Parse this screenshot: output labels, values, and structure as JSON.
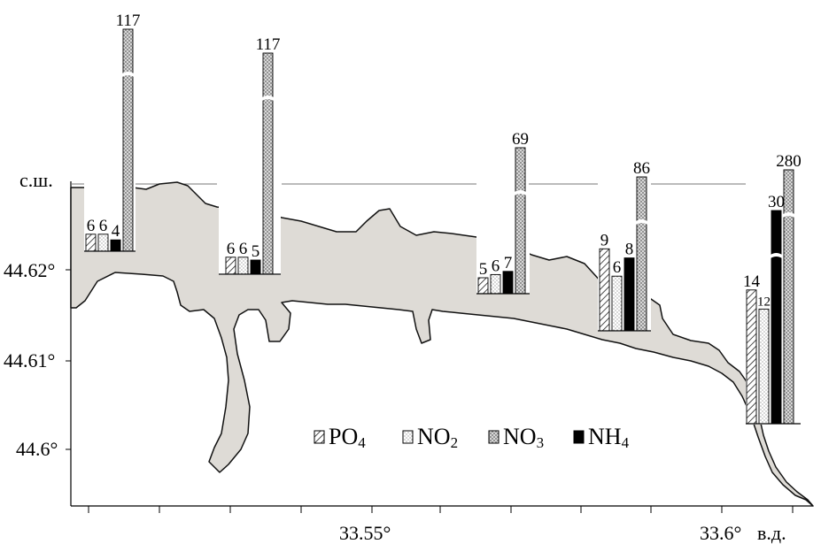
{
  "chart_data": {
    "type": "bar",
    "title": "",
    "subtitle": "",
    "xlabel": "в.д.",
    "ylabel": "с.ш.",
    "x_axis": {
      "ticks": [
        33.55,
        33.6
      ],
      "tick_labels": [
        "33.55°",
        "33.6°"
      ],
      "unit_label": "в.д."
    },
    "y_axis": {
      "ticks": [
        44.62,
        44.61,
        44.6
      ],
      "tick_labels": [
        "44.62°",
        "44.61°",
        "44.6°"
      ],
      "unit_label": "с.ш."
    },
    "categories": [
      "PO4",
      "NO2",
      "NO3",
      "NH4"
    ],
    "legend": {
      "placement": "bottom-center",
      "entries": [
        {
          "key": "PO4",
          "base": "PO",
          "sub": "4"
        },
        {
          "key": "NO2",
          "base": "NO",
          "sub": "2"
        },
        {
          "key": "NO3",
          "base": "NO",
          "sub": "3"
        },
        {
          "key": "NH4",
          "base": "NH",
          "sub": "4"
        }
      ]
    },
    "stations": [
      {
        "values": [
          6,
          6,
          117,
          4
        ],
        "labels": [
          "6",
          "6",
          "117",
          "4"
        ]
      },
      {
        "values": [
          6,
          6,
          117,
          5
        ],
        "labels": [
          "6",
          "6",
          "117",
          "5"
        ]
      },
      {
        "values": [
          5,
          6,
          69,
          7
        ],
        "labels": [
          "5",
          "6",
          "69",
          "7"
        ]
      },
      {
        "values": [
          9,
          6,
          86,
          8
        ],
        "labels": [
          "9",
          "6",
          "86",
          "8"
        ]
      },
      {
        "values": [
          14,
          12,
          280,
          30
        ],
        "labels": [
          "14",
          "12",
          "280",
          "30"
        ]
      }
    ],
    "broken_axis_note": "NO3 bars (and NH4 at the last station) are drawn with a scale break"
  }
}
